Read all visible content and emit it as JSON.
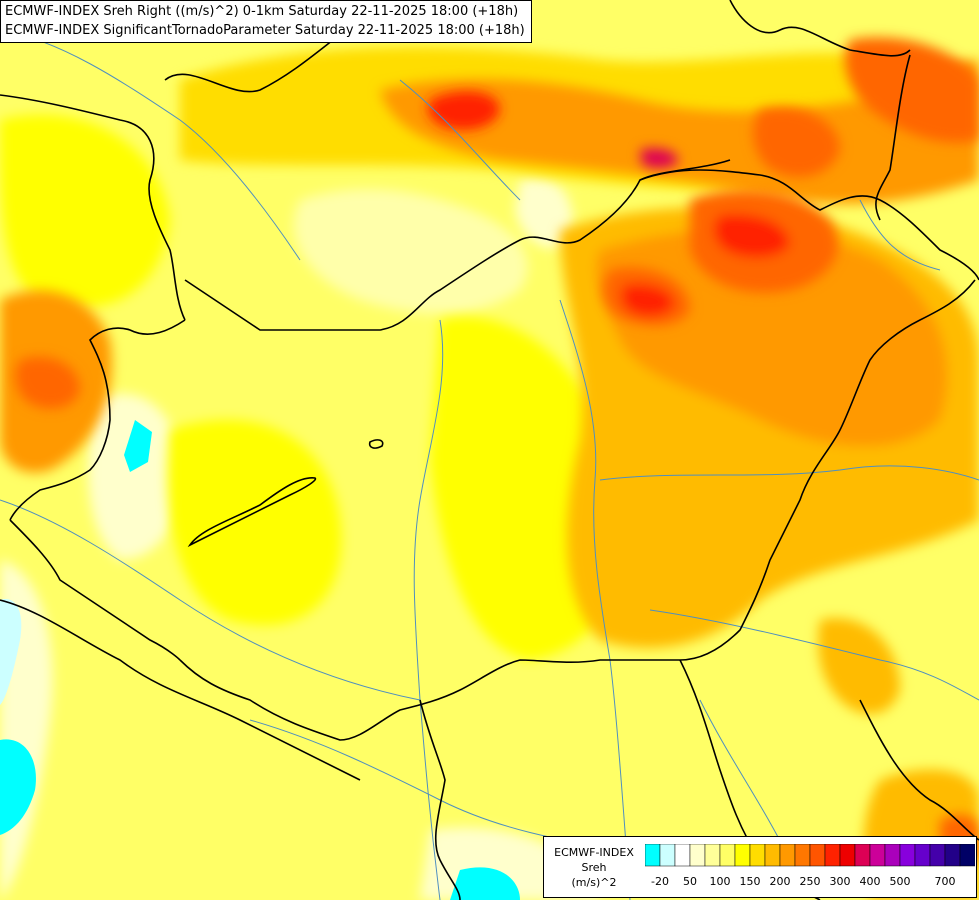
{
  "title": {
    "line1": "ECMWF-INDEX Sreh Right ((m/s)^2) 0-1km Saturday 22-11-2025 18:00 (+18h)",
    "line2": "ECMWF-INDEX SignificantTornadoParameter Saturday 22-11-2025 18:00 (+18h)"
  },
  "legend": {
    "model": "ECMWF-INDEX",
    "parameter": "Sreh",
    "unit": "(m/s)^2",
    "colors": [
      "#00ffff",
      "#ccffff",
      "#ffffff",
      "#ffffcc",
      "#ffff99",
      "#ffff66",
      "#ffff00",
      "#ffdd00",
      "#ffbb00",
      "#ff9900",
      "#ff7700",
      "#ff5500",
      "#ff2200",
      "#ee0000",
      "#dd0055",
      "#cc0099",
      "#aa00bb",
      "#8800dd",
      "#6600cc",
      "#4400aa",
      "#220088",
      "#000066"
    ],
    "ticks": [
      "-20",
      "50",
      "100",
      "150",
      "200",
      "250",
      "300",
      "400",
      "500",
      "700"
    ]
  },
  "fill_colors": {
    "base": "#ffff66",
    "light": "#ffffaa",
    "pale": "#ffffcc",
    "yellow": "#ffff00",
    "gold": "#ffdd00",
    "amber": "#ffbb00",
    "orange": "#ff9900",
    "dark_orange": "#ff6600",
    "red": "#ff2200",
    "cyan": "#00ffff",
    "magenta": "#dd0055"
  }
}
